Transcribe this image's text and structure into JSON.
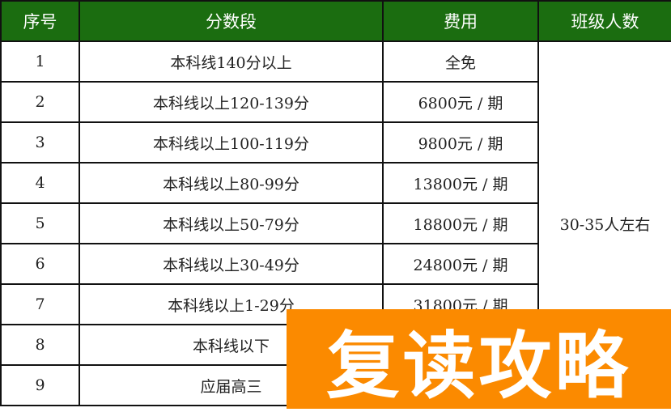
{
  "header": {
    "col1": "序号",
    "col2": "分数段",
    "col3": "费用",
    "col4": "班级人数"
  },
  "rows": [
    {
      "no": "1",
      "range": "本科线140分以上",
      "fee": "全免"
    },
    {
      "no": "2",
      "range": "本科线以上120-139分",
      "fee": "6800元 / 期"
    },
    {
      "no": "3",
      "range": "本科线以上100-119分",
      "fee": "9800元 / 期"
    },
    {
      "no": "4",
      "range": "本科线以上80-99分",
      "fee": "13800元 / 期"
    },
    {
      "no": "5",
      "range": "本科线以上50-79分",
      "fee": "18800元 / 期"
    },
    {
      "no": "6",
      "range": "本科线以上30-49分",
      "fee": "24800元 / 期"
    },
    {
      "no": "7",
      "range": "本科线以上1-29分",
      "fee": "31800元 / 期"
    },
    {
      "no": "8",
      "range": "本科线以下",
      "fee": ""
    },
    {
      "no": "9",
      "range": "应届高三",
      "fee": ""
    }
  ],
  "class_size": "30-35人左右",
  "overlay": {
    "text": "复读攻略",
    "color": "#fb8a00"
  },
  "colors": {
    "header_bg": "#1b6d10"
  }
}
